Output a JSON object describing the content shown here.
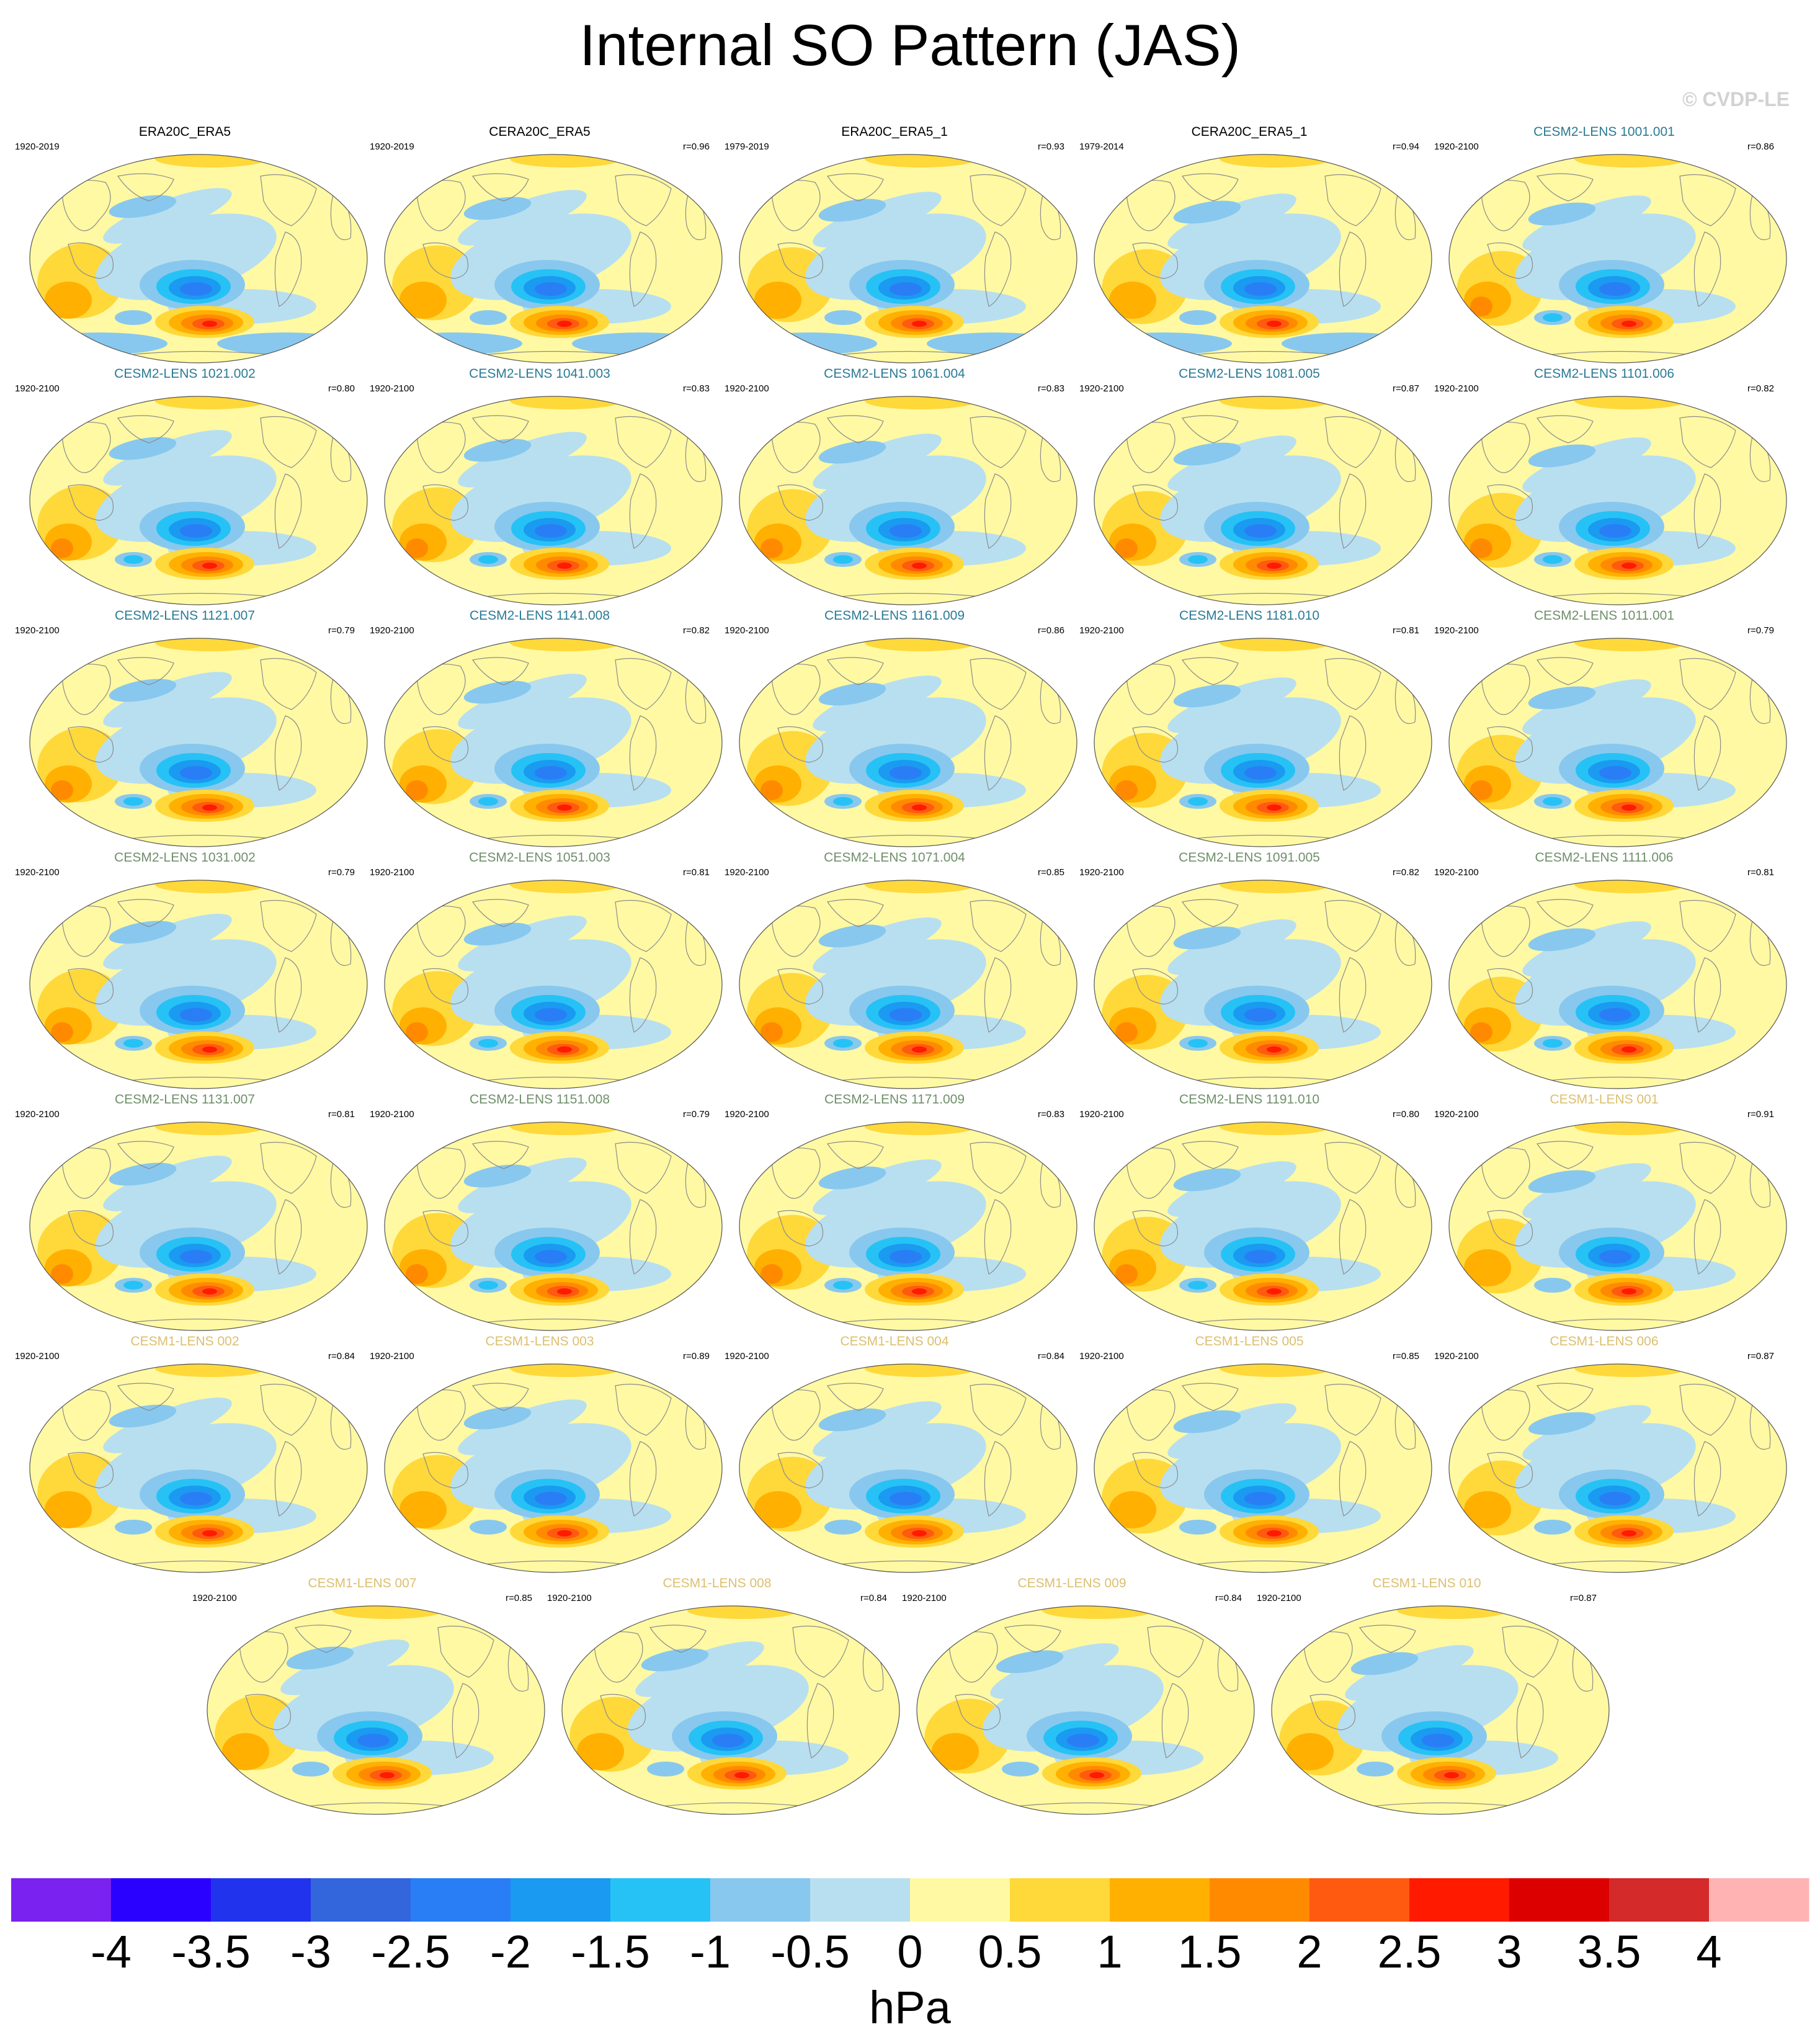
{
  "title": "Internal SO Pattern (JAS)",
  "watermark": "© CVDP-LE",
  "colors": {
    "ocean_base": "#fff9a3",
    "land_outline": "#8c8c8c",
    "title_black": "#000000",
    "title_cesm2_blue": "#2a7a95",
    "title_cesm2_green": "#6f8f6a",
    "title_cesm1_gold": "#dcbf6e"
  },
  "panels": [
    {
      "title": "ERA20C_ERA5",
      "years": "1920-2019",
      "corr": "",
      "group": "obs"
    },
    {
      "title": "CERA20C_ERA5",
      "years": "1920-2019",
      "corr": "r=0.96",
      "group": "obs"
    },
    {
      "title": "ERA20C_ERA5_1",
      "years": "1979-2019",
      "corr": "r=0.93",
      "group": "obs"
    },
    {
      "title": "CERA20C_ERA5_1",
      "years": "1979-2014",
      "corr": "r=0.94",
      "group": "obs"
    },
    {
      "title": "CESM2-LENS 1001.001",
      "years": "1920-2100",
      "corr": "r=0.86",
      "group": "cesm2_blue"
    },
    {
      "title": "CESM2-LENS 1021.002",
      "years": "1920-2100",
      "corr": "r=0.80",
      "group": "cesm2_blue"
    },
    {
      "title": "CESM2-LENS 1041.003",
      "years": "1920-2100",
      "corr": "r=0.83",
      "group": "cesm2_blue"
    },
    {
      "title": "CESM2-LENS 1061.004",
      "years": "1920-2100",
      "corr": "r=0.83",
      "group": "cesm2_blue"
    },
    {
      "title": "CESM2-LENS 1081.005",
      "years": "1920-2100",
      "corr": "r=0.87",
      "group": "cesm2_blue"
    },
    {
      "title": "CESM2-LENS 1101.006",
      "years": "1920-2100",
      "corr": "r=0.82",
      "group": "cesm2_blue"
    },
    {
      "title": "CESM2-LENS 1121.007",
      "years": "1920-2100",
      "corr": "r=0.79",
      "group": "cesm2_blue"
    },
    {
      "title": "CESM2-LENS 1141.008",
      "years": "1920-2100",
      "corr": "r=0.82",
      "group": "cesm2_blue"
    },
    {
      "title": "CESM2-LENS 1161.009",
      "years": "1920-2100",
      "corr": "r=0.86",
      "group": "cesm2_blue"
    },
    {
      "title": "CESM2-LENS 1181.010",
      "years": "1920-2100",
      "corr": "r=0.81",
      "group": "cesm2_blue"
    },
    {
      "title": "CESM2-LENS 1011.001",
      "years": "1920-2100",
      "corr": "r=0.79",
      "group": "cesm2_green"
    },
    {
      "title": "CESM2-LENS 1031.002",
      "years": "1920-2100",
      "corr": "r=0.79",
      "group": "cesm2_green"
    },
    {
      "title": "CESM2-LENS 1051.003",
      "years": "1920-2100",
      "corr": "r=0.81",
      "group": "cesm2_green"
    },
    {
      "title": "CESM2-LENS 1071.004",
      "years": "1920-2100",
      "corr": "r=0.85",
      "group": "cesm2_green"
    },
    {
      "title": "CESM2-LENS 1091.005",
      "years": "1920-2100",
      "corr": "r=0.82",
      "group": "cesm2_green"
    },
    {
      "title": "CESM2-LENS 1111.006",
      "years": "1920-2100",
      "corr": "r=0.81",
      "group": "cesm2_green"
    },
    {
      "title": "CESM2-LENS 1131.007",
      "years": "1920-2100",
      "corr": "r=0.81",
      "group": "cesm2_green"
    },
    {
      "title": "CESM2-LENS 1151.008",
      "years": "1920-2100",
      "corr": "r=0.79",
      "group": "cesm2_green"
    },
    {
      "title": "CESM2-LENS 1171.009",
      "years": "1920-2100",
      "corr": "r=0.83",
      "group": "cesm2_green"
    },
    {
      "title": "CESM2-LENS 1191.010",
      "years": "1920-2100",
      "corr": "r=0.80",
      "group": "cesm2_green"
    },
    {
      "title": "CESM1-LENS 001",
      "years": "1920-2100",
      "corr": "r=0.91",
      "group": "cesm1"
    },
    {
      "title": "CESM1-LENS 002",
      "years": "1920-2100",
      "corr": "r=0.84",
      "group": "cesm1"
    },
    {
      "title": "CESM1-LENS 003",
      "years": "1920-2100",
      "corr": "r=0.89",
      "group": "cesm1"
    },
    {
      "title": "CESM1-LENS 004",
      "years": "1920-2100",
      "corr": "r=0.84",
      "group": "cesm1"
    },
    {
      "title": "CESM1-LENS 005",
      "years": "1920-2100",
      "corr": "r=0.85",
      "group": "cesm1"
    },
    {
      "title": "CESM1-LENS 006",
      "years": "1920-2100",
      "corr": "r=0.87",
      "group": "cesm1"
    },
    {
      "title": "CESM1-LENS 007",
      "years": "1920-2100",
      "corr": "r=0.85",
      "group": "cesm1"
    },
    {
      "title": "CESM1-LENS 008",
      "years": "1920-2100",
      "corr": "r=0.84",
      "group": "cesm1"
    },
    {
      "title": "CESM1-LENS 009",
      "years": "1920-2100",
      "corr": "r=0.84",
      "group": "cesm1"
    },
    {
      "title": "CESM1-LENS 010",
      "years": "1920-2100",
      "corr": "r=0.87",
      "group": "cesm1"
    }
  ],
  "colorbar": {
    "units": "hPa",
    "tick_labels": [
      "-4",
      "-3.5",
      "-3",
      "-2.5",
      "-2",
      "-1.5",
      "-1",
      "-0.5",
      "0",
      "0.5",
      "1",
      "1.5",
      "2",
      "2.5",
      "3",
      "3.5",
      "4"
    ],
    "colors": [
      "#7a22f0",
      "#2a00ff",
      "#2233ee",
      "#3366dd",
      "#2a7ef5",
      "#1a9af0",
      "#26c2f5",
      "#88c8ee",
      "#b8dff0",
      "#fff9a3",
      "#ffd83a",
      "#ffb000",
      "#ff8a00",
      "#ff5a10",
      "#ff1a00",
      "#dd0000",
      "#d42a2a",
      "#ffb3b3"
    ]
  }
}
